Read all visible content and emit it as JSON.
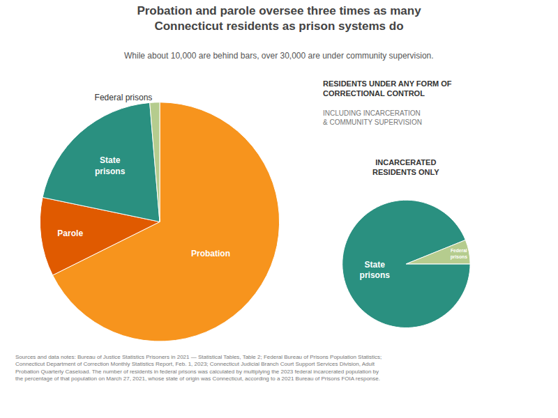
{
  "chart_data": [
    {
      "type": "pie",
      "title": "Probation and parole oversee three times as many\nConnecticut residents as prison systems do",
      "subtitle": "While about 10,000 are behind bars, over 30,000 are under community supervision.",
      "categories": [
        "Probation",
        "Parole",
        "State\nprisons",
        "Federal prisons"
      ],
      "values": [
        30500,
        4800,
        9200,
        600
      ],
      "colors": [
        "#F7941D",
        "#E05A00",
        "#2A9080",
        "#B5CC8E"
      ],
      "annotations": [
        "RESIDENTS UNDER ANY FORM OF\nCORRECTIONAL CONTROL",
        "INCLUDING INCARCERATION\n& COMMUNITY SUPERVISION",
        "Sources and data notes: Bureau of Justice Statistics Prisoners in 2021 — Statistical Tables, Table 2; Federal Bureau of Prisons Population Statistics;\nConnecticut Department of Correction Monthly Statistics Report, Feb. 1, 2023; Connecticut Judicial Branch Court Support Services Division, Adult\nProbation Quarterly Caseload. The number of residents in federal prisons was calculated by multiplying the 2023 federal incarcerated population by\nthe percentage of that population on March 27, 2021, whose state of origin was Connecticut, according to a 2021 Bureau of Prisons FOIA response."
      ]
    },
    {
      "type": "pie",
      "categories": [
        "State\nprisons",
        "Federal\nprisons"
      ],
      "values": [
        9200,
        600
      ],
      "colors": [
        "#2A9080",
        "#B5CC8E"
      ],
      "annotations": [
        "INCARCERATED\nRESIDENTS ONLY"
      ]
    }
  ]
}
